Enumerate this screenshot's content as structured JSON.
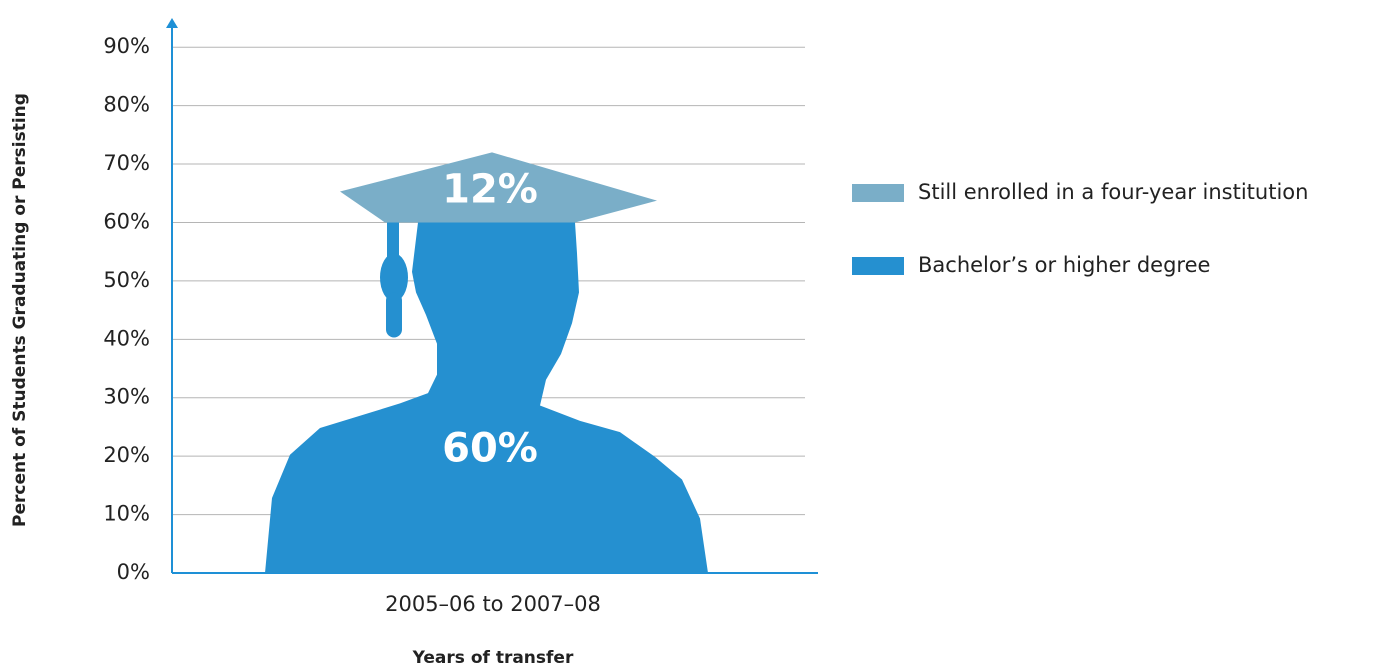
{
  "chart_data": {
    "type": "pictorial-stacked-bar",
    "x_label": "Years of transfer",
    "y_label": "Percent of Students Graduating or Persisting",
    "categories": [
      "2005–06 to 2007–08"
    ],
    "series": [
      {
        "name": "Still enrolled in a four-year institution",
        "color": "#7aaec8",
        "values": [
          12
        ],
        "value_labels": [
          "12%"
        ]
      },
      {
        "name": "Bachelor’s or higher degree",
        "color": "#2590d0",
        "values": [
          60
        ],
        "value_labels": [
          "60%"
        ]
      }
    ],
    "ylim": [
      0,
      95
    ],
    "yticks": [
      {
        "value": 0,
        "label": "0%"
      },
      {
        "value": 10,
        "label": "10%"
      },
      {
        "value": 20,
        "label": "20%"
      },
      {
        "value": 30,
        "label": "30%"
      },
      {
        "value": 40,
        "label": "40%"
      },
      {
        "value": 50,
        "label": "50%"
      },
      {
        "value": 60,
        "label": "60%"
      },
      {
        "value": 70,
        "label": "70%"
      },
      {
        "value": 80,
        "label": "80%"
      },
      {
        "value": 90,
        "label": "90%"
      }
    ],
    "grid": true
  }
}
